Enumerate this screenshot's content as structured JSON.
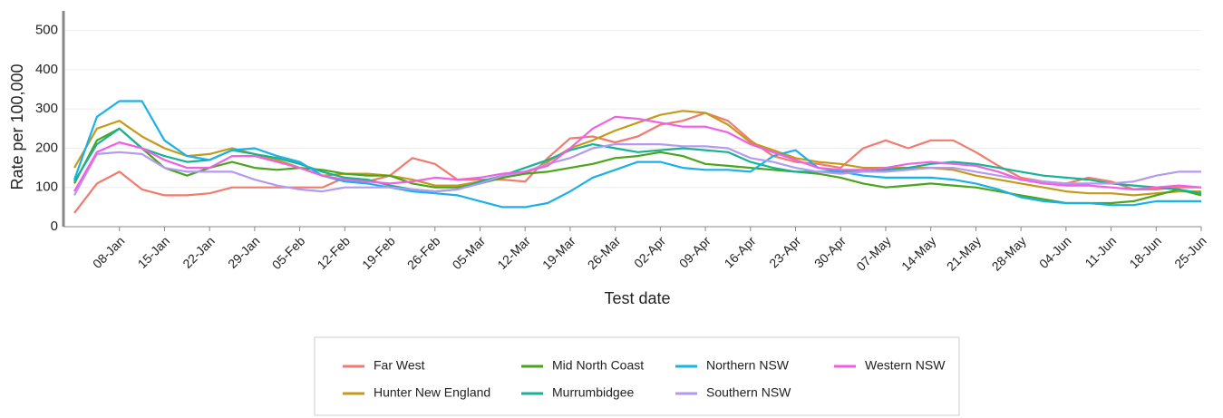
{
  "chart_data": {
    "type": "line",
    "x_label": "Test date",
    "y_label": "Rate per 100,000",
    "categories": [
      null,
      null,
      "08-Jan",
      null,
      "15-Jan",
      null,
      "22-Jan",
      null,
      "29-Jan",
      null,
      "05-Feb",
      null,
      "12-Feb",
      null,
      "19-Feb",
      null,
      "26-Feb",
      null,
      "05-Mar",
      null,
      "12-Mar",
      null,
      "19-Mar",
      null,
      "26-Mar",
      null,
      "02-Apr",
      null,
      "09-Apr",
      null,
      "16-Apr",
      null,
      "23-Apr",
      null,
      "30-Apr",
      null,
      "07-May",
      null,
      "14-May",
      null,
      "21-May",
      null,
      "28-May",
      null,
      "04-Jun",
      null,
      "11-Jun",
      null,
      "18-Jun",
      null,
      "25-Jun"
    ],
    "ylim": [
      0,
      550
    ],
    "yticks": [
      0,
      100,
      200,
      300,
      400,
      500
    ],
    "grid": true,
    "series": [
      {
        "name": "Far West",
        "color": "#f07b6e",
        "values": [
          35,
          110,
          140,
          95,
          80,
          80,
          85,
          100,
          100,
          100,
          100,
          100,
          125,
          115,
          130,
          175,
          160,
          120,
          120,
          120,
          115,
          175,
          225,
          230,
          215,
          230,
          260,
          270,
          290,
          270,
          220,
          180,
          165,
          160,
          150,
          200,
          220,
          200,
          220,
          220,
          190,
          155,
          125,
          115,
          110,
          125,
          115,
          95,
          95,
          100,
          100
        ]
      },
      {
        "name": "Hunter New England",
        "color": "#c49a1b",
        "values": [
          150,
          250,
          270,
          230,
          200,
          180,
          185,
          200,
          185,
          170,
          150,
          130,
          135,
          135,
          130,
          120,
          105,
          105,
          115,
          125,
          135,
          165,
          200,
          220,
          245,
          265,
          285,
          295,
          290,
          260,
          215,
          195,
          175,
          165,
          160,
          150,
          150,
          150,
          150,
          145,
          130,
          120,
          110,
          100,
          90,
          85,
          85,
          80,
          85,
          90,
          90
        ]
      },
      {
        "name": "Mid North Coast",
        "color": "#4aa51c",
        "values": [
          110,
          220,
          250,
          200,
          150,
          130,
          150,
          165,
          150,
          145,
          150,
          145,
          135,
          130,
          130,
          110,
          100,
          100,
          110,
          125,
          135,
          140,
          150,
          160,
          175,
          180,
          190,
          180,
          160,
          155,
          150,
          145,
          140,
          135,
          125,
          110,
          100,
          105,
          110,
          105,
          100,
          90,
          80,
          70,
          60,
          60,
          60,
          65,
          80,
          95,
          80
        ]
      },
      {
        "name": "Murrumbidgee",
        "color": "#17b294",
        "values": [
          115,
          210,
          250,
          200,
          180,
          165,
          170,
          195,
          185,
          175,
          160,
          140,
          125,
          120,
          105,
          95,
          90,
          95,
          115,
          130,
          150,
          170,
          195,
          210,
          200,
          190,
          195,
          200,
          195,
          190,
          165,
          150,
          140,
          140,
          140,
          140,
          145,
          150,
          160,
          165,
          160,
          150,
          140,
          130,
          125,
          120,
          110,
          105,
          100,
          95,
          85
        ]
      },
      {
        "name": "Northern NSW",
        "color": "#19b1e8",
        "values": [
          120,
          280,
          320,
          320,
          220,
          180,
          170,
          195,
          200,
          180,
          165,
          130,
          115,
          110,
          100,
          90,
          85,
          80,
          65,
          50,
          50,
          60,
          90,
          125,
          145,
          165,
          165,
          150,
          145,
          145,
          140,
          180,
          195,
          150,
          140,
          130,
          125,
          125,
          125,
          120,
          110,
          95,
          75,
          65,
          60,
          60,
          55,
          55,
          65,
          65,
          65
        ]
      },
      {
        "name": "Southern NSW",
        "color": "#b39af0",
        "values": [
          80,
          185,
          190,
          185,
          150,
          140,
          140,
          140,
          120,
          105,
          95,
          90,
          100,
          100,
          100,
          95,
          90,
          95,
          110,
          130,
          140,
          160,
          175,
          200,
          210,
          210,
          210,
          205,
          205,
          200,
          175,
          165,
          150,
          140,
          135,
          140,
          140,
          145,
          150,
          150,
          140,
          130,
          120,
          115,
          110,
          110,
          110,
          115,
          130,
          140,
          140
        ]
      },
      {
        "name": "Western NSW",
        "color": "#f15fe4",
        "values": [
          90,
          190,
          215,
          200,
          170,
          150,
          150,
          180,
          180,
          165,
          150,
          130,
          120,
          115,
          110,
          115,
          125,
          120,
          125,
          135,
          140,
          155,
          200,
          250,
          280,
          275,
          265,
          255,
          255,
          240,
          210,
          190,
          170,
          150,
          145,
          145,
          150,
          160,
          165,
          160,
          155,
          140,
          120,
          110,
          105,
          105,
          100,
          95,
          100,
          105,
          100
        ]
      }
    ]
  }
}
